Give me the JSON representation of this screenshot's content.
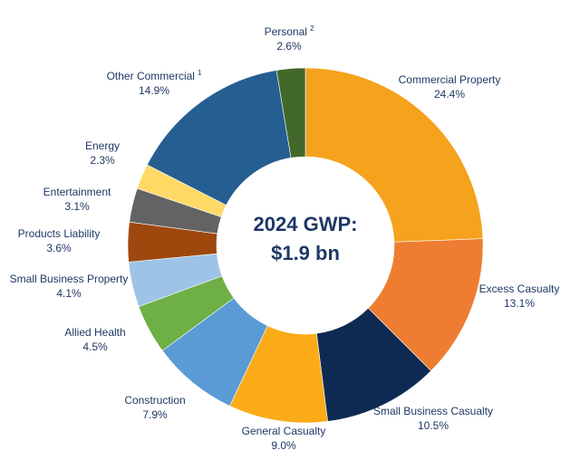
{
  "chart_data": {
    "type": "pie",
    "variant": "donut",
    "center_label": [
      "2024 GWP:",
      "$1.9 bn"
    ],
    "slices": [
      {
        "name": "Commercial Property",
        "pct_label": "24.4%",
        "value": 24.4,
        "color": "#f5a21d"
      },
      {
        "name": "Excess Casualty",
        "pct_label": "13.1%",
        "value": 13.1,
        "color": "#ee7d31"
      },
      {
        "name": "Small Business Casualty",
        "pct_label": "10.5%",
        "value": 10.5,
        "color": "#0f2a52"
      },
      {
        "name": "General Casualty",
        "pct_label": "9.0%",
        "value": 9.0,
        "color": "#fbab18"
      },
      {
        "name": "Construction",
        "pct_label": "7.9%",
        "value": 7.9,
        "color": "#5a9bd5"
      },
      {
        "name": "Allied Health",
        "pct_label": "4.5%",
        "value": 4.5,
        "color": "#6eaf46"
      },
      {
        "name": "Small Business Property",
        "pct_label": "4.1%",
        "value": 4.1,
        "color": "#9dc3e6"
      },
      {
        "name": "Products Liability",
        "pct_label": "3.6%",
        "value": 3.6,
        "color": "#9e480e"
      },
      {
        "name": "Entertainment",
        "pct_label": "3.1%",
        "value": 3.1,
        "color": "#636363"
      },
      {
        "name": "Energy",
        "pct_label": "2.3%",
        "value": 2.3,
        "color": "#ffd966"
      },
      {
        "name": "Other Commercial",
        "sup": "1",
        "pct_label": "14.9%",
        "value": 14.9,
        "color": "#255e91"
      },
      {
        "name": "Personal",
        "sup": "2",
        "pct_label": "2.6%",
        "value": 2.6,
        "color": "#43682b"
      }
    ]
  }
}
